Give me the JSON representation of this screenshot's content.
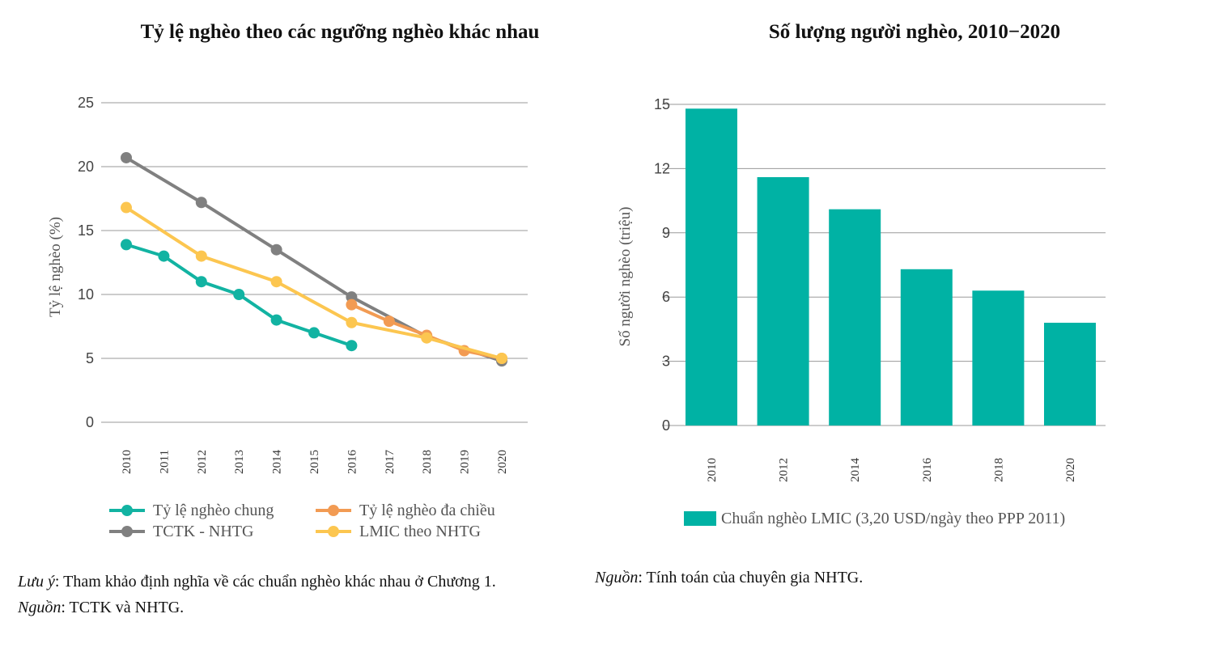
{
  "left_chart": {
    "title": "Tỷ lệ nghèo theo các ngưỡng nghèo khác nhau",
    "note_label": "Lưu ý",
    "note_text": ": Tham khảo định nghĩa về các chuẩn nghèo khác nhau ở Chương 1.",
    "source_label": "Nguồn",
    "source_text": ": TCTK và NHTG."
  },
  "right_chart": {
    "title": "Số lượng người nghèo, 2010−2020",
    "source_label": "Nguồn",
    "source_text": ": Tính toán của chuyên gia NHTG."
  },
  "chart_data": [
    {
      "type": "line",
      "title": "Tỷ lệ nghèo theo các ngưỡng nghèo khác nhau",
      "ylabel": "Tỷ lệ nghèo (%)",
      "xlabel": "",
      "ylim": [
        0,
        25
      ],
      "yticks": [
        "0",
        "5",
        "10",
        "15",
        "20",
        "25"
      ],
      "x": [
        "2010",
        "2011",
        "2012",
        "2013",
        "2014",
        "2015",
        "2016",
        "2017",
        "2018",
        "2019",
        "2020"
      ],
      "grid": "horizontal",
      "legend_position": "bottom",
      "series": [
        {
          "name": "Tỷ lệ nghèo chung",
          "color": "#12B3A2",
          "points": [
            [
              "2010",
              13.9
            ],
            [
              "2011",
              13.0
            ],
            [
              "2012",
              11.0
            ],
            [
              "2013",
              10.0
            ],
            [
              "2014",
              8.0
            ],
            [
              "2015",
              7.0
            ],
            [
              "2016",
              6.0
            ]
          ]
        },
        {
          "name": "TCTK - NHTG",
          "color": "#808080",
          "points": [
            [
              "2010",
              20.7
            ],
            [
              "2012",
              17.2
            ],
            [
              "2014",
              13.5
            ],
            [
              "2016",
              9.8
            ],
            [
              "2018",
              6.7
            ],
            [
              "2020",
              4.8
            ]
          ]
        },
        {
          "name": "Tỷ lệ nghèo đa chiều",
          "color": "#F29B53",
          "points": [
            [
              "2016",
              9.2
            ],
            [
              "2017",
              7.9
            ],
            [
              "2018",
              6.8
            ],
            [
              "2019",
              5.6
            ],
            [
              "2020",
              5.0
            ]
          ]
        },
        {
          "name": "LMIC theo NHTG",
          "color": "#FCC650",
          "points": [
            [
              "2010",
              16.8
            ],
            [
              "2012",
              13.0
            ],
            [
              "2014",
              11.0
            ],
            [
              "2016",
              7.8
            ],
            [
              "2018",
              6.6
            ],
            [
              "2020",
              5.0
            ]
          ]
        }
      ]
    },
    {
      "type": "bar",
      "title": "Số lượng người nghèo, 2010−2020",
      "ylabel": "Số người nghèo (triệu)",
      "xlabel": "",
      "ylim": [
        0,
        15
      ],
      "yticks": [
        "0",
        "3",
        "6",
        "9",
        "12",
        "15"
      ],
      "categories": [
        "2010",
        "2012",
        "2014",
        "2016",
        "2018",
        "2020"
      ],
      "grid": "horizontal",
      "legend_position": "bottom",
      "series": [
        {
          "name": "Chuẩn nghèo LMIC (3,20 USD/ngày theo PPP 2011)",
          "color": "#00B2A4",
          "values": [
            14.8,
            11.6,
            10.1,
            7.3,
            6.3,
            4.8
          ]
        }
      ]
    }
  ]
}
